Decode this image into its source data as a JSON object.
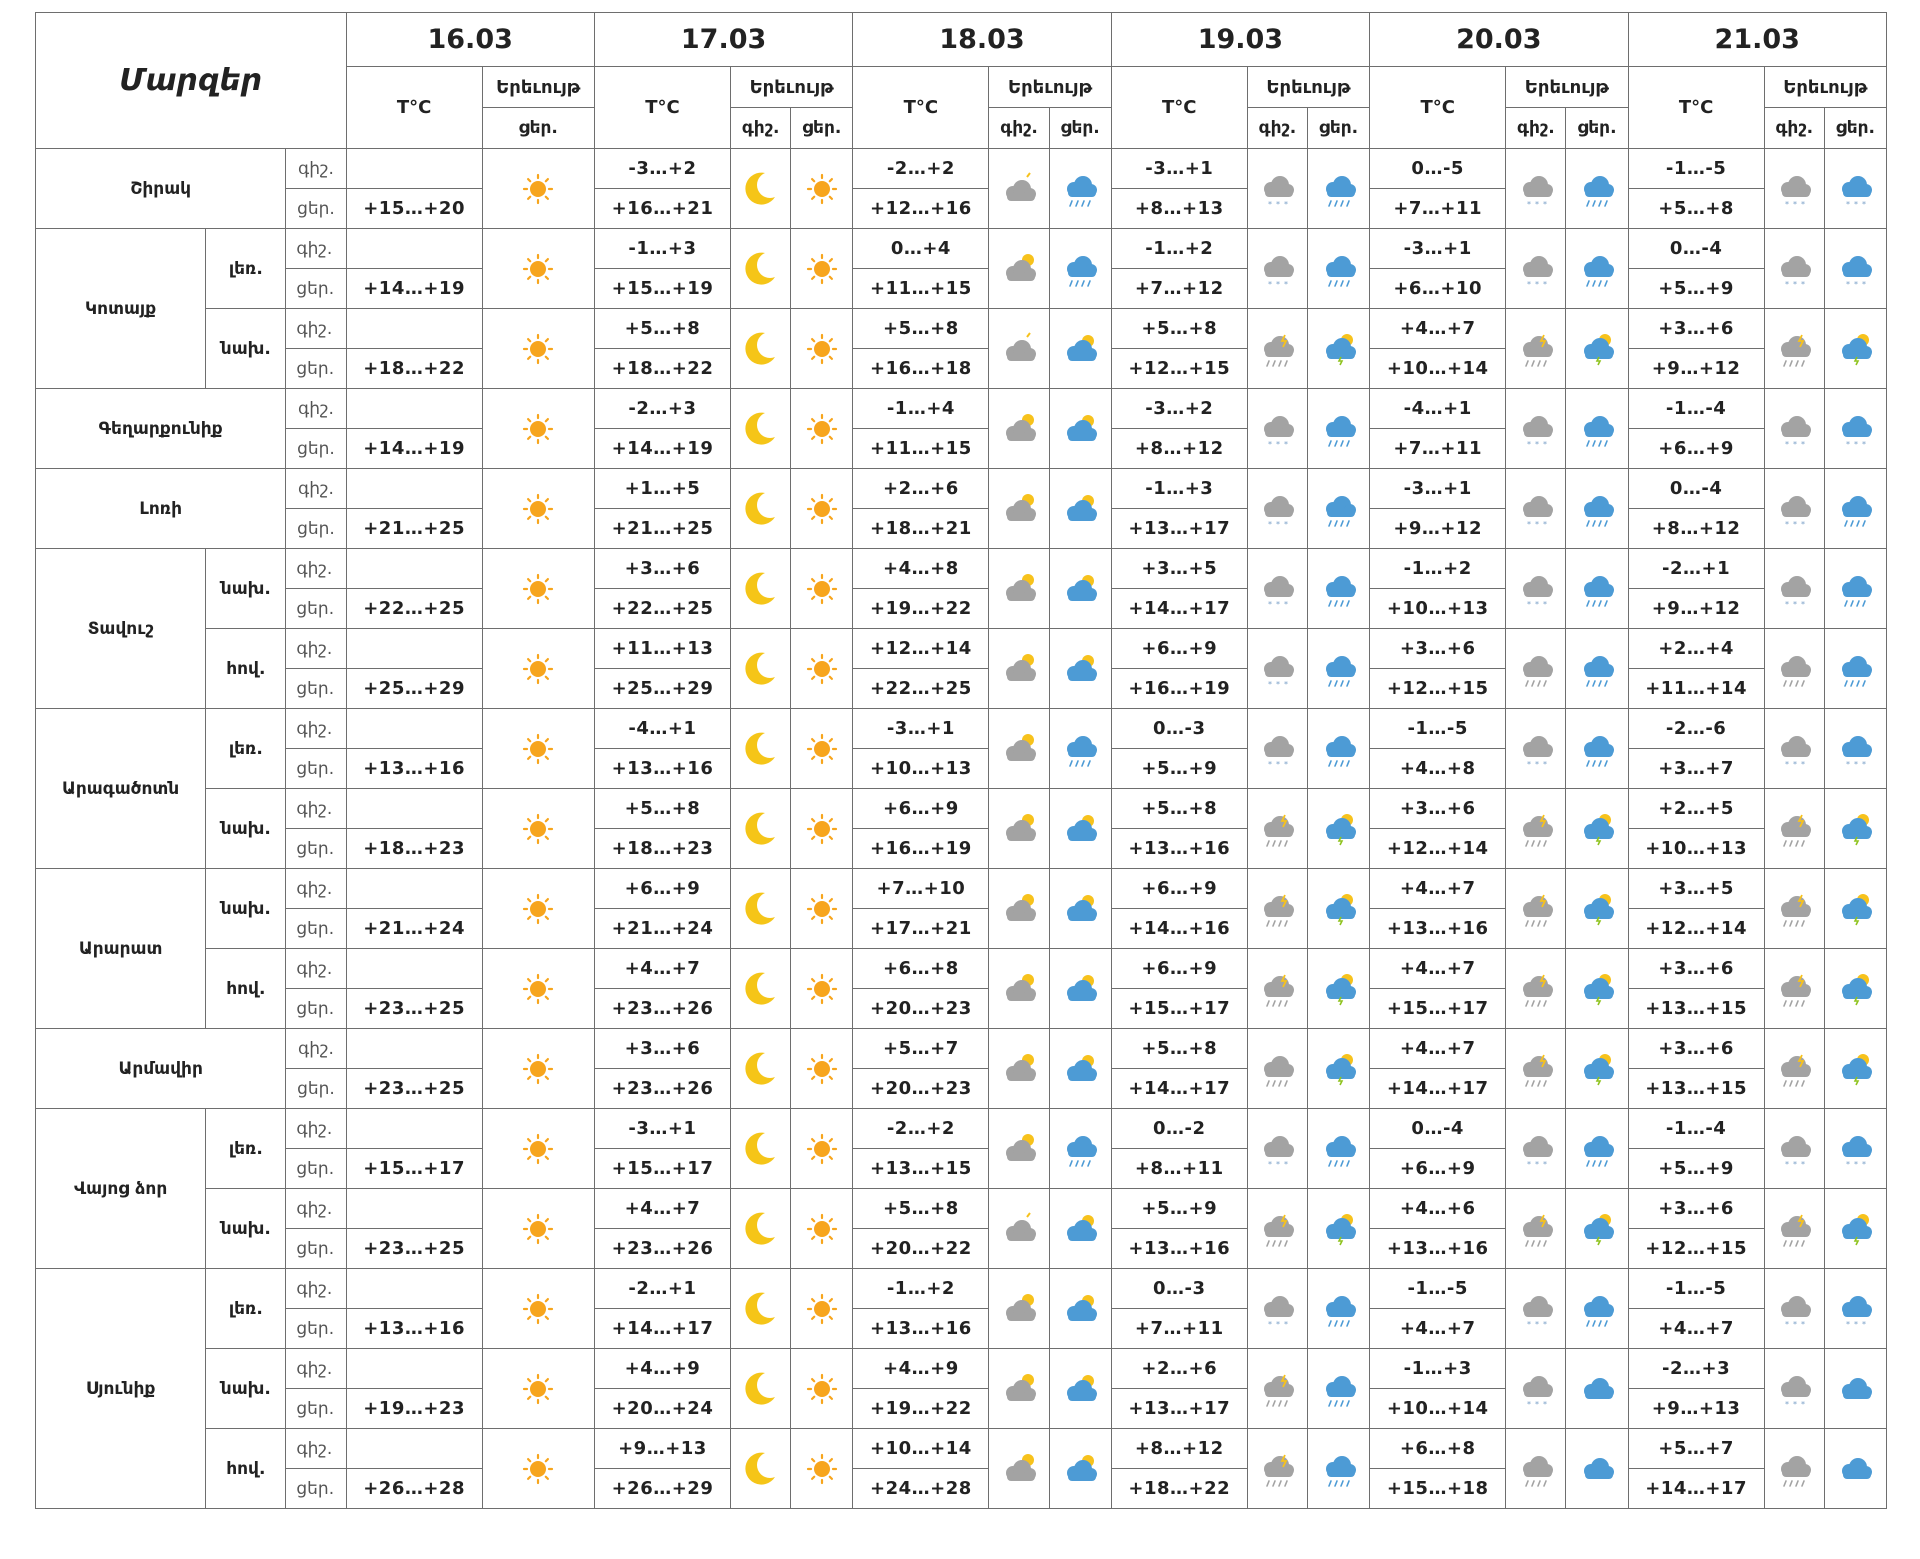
{
  "header": {
    "title": "Մարզեր",
    "dates": [
      "16.03",
      "17.03",
      "18.03",
      "19.03",
      "20.03",
      "21.03"
    ],
    "temp_label": "T°C",
    "phenomenon_label": "Երեւույթ",
    "night_label": "գիշ.",
    "day_label": "ցեր."
  },
  "regions": [
    {
      "name": "Շիրակ",
      "subs": [
        {
          "label": "",
          "night": [
            "",
            "-3…+2",
            "-2…+2",
            "-3…+1",
            "0…-5",
            "-1…-5"
          ],
          "day": [
            "+15…+20",
            "+16…+21",
            "+12…+16",
            "+8…+13",
            "+7…+11",
            "+5…+8"
          ],
          "icons": [
            "sun",
            "moon",
            "sun",
            "cloud",
            "shower",
            "snowcloud",
            "shower",
            "snowcloud",
            "shower",
            "snowcloud",
            "snowshower"
          ]
        }
      ]
    },
    {
      "name": "Կոտայք",
      "subs": [
        {
          "label": "լեռ.",
          "night": [
            "",
            "-1…+3",
            "0…+4",
            "-1…+2",
            "-3…+1",
            "0…-4"
          ],
          "day": [
            "+14…+19",
            "+15…+19",
            "+11…+15",
            "+7…+12",
            "+6…+10",
            "+5…+9"
          ],
          "icons": [
            "sun",
            "moon",
            "sun",
            "cloudsun",
            "shower",
            "snowcloud",
            "shower",
            "snowcloud",
            "shower",
            "snowcloud",
            "snowshower"
          ]
        },
        {
          "label": "նախ.",
          "night": [
            "",
            "+5…+8",
            "+5…+8",
            "+5…+8",
            "+4…+7",
            "+3…+6"
          ],
          "day": [
            "+18…+22",
            "+18…+22",
            "+16…+18",
            "+12…+15",
            "+10…+14",
            "+9…+12"
          ],
          "icons": [
            "sun",
            "moon",
            "sun",
            "cloud",
            "suncloud",
            "storm",
            "sunstorm",
            "storm",
            "sunstorm",
            "storm",
            "sunstorm"
          ]
        }
      ]
    },
    {
      "name": "Գեղարքունիք",
      "subs": [
        {
          "label": "",
          "night": [
            "",
            "-2…+3",
            "-1…+4",
            "-3…+2",
            "-4…+1",
            "-1…-4"
          ],
          "day": [
            "+14…+19",
            "+14…+19",
            "+11…+15",
            "+8…+12",
            "+7…+11",
            "+6…+9"
          ],
          "icons": [
            "sun",
            "moon",
            "sun",
            "cloudsun",
            "suncloud",
            "snowcloud",
            "shower",
            "snowcloud",
            "shower",
            "snowcloud",
            "snowshower"
          ]
        }
      ]
    },
    {
      "name": "Լոռի",
      "subs": [
        {
          "label": "",
          "night": [
            "",
            "+1…+5",
            "+2…+6",
            "-1…+3",
            "-3…+1",
            "0…-4"
          ],
          "day": [
            "+21…+25",
            "+21…+25",
            "+18…+21",
            "+13…+17",
            "+9…+12",
            "+8…+12"
          ],
          "icons": [
            "sun",
            "moon",
            "sun",
            "cloudsun",
            "suncloud",
            "snowcloud",
            "shower",
            "snowcloud",
            "shower",
            "snowcloud",
            "shower"
          ]
        }
      ]
    },
    {
      "name": "Տավուշ",
      "subs": [
        {
          "label": "նախ.",
          "night": [
            "",
            "+3…+6",
            "+4…+8",
            "+3…+5",
            "-1…+2",
            "-2…+1"
          ],
          "day": [
            "+22…+25",
            "+22…+25",
            "+19…+22",
            "+14…+17",
            "+10…+13",
            "+9…+12"
          ],
          "icons": [
            "sun",
            "moon",
            "sun",
            "cloudsun",
            "suncloud",
            "snowcloud",
            "shower",
            "snowcloud",
            "shower",
            "snowcloud",
            "shower"
          ]
        },
        {
          "label": "հով.",
          "night": [
            "",
            "+11…+13",
            "+12…+14",
            "+6…+9",
            "+3…+6",
            "+2…+4"
          ],
          "day": [
            "+25…+29",
            "+25…+29",
            "+22…+25",
            "+16…+19",
            "+12…+15",
            "+11…+14"
          ],
          "icons": [
            "sun",
            "moon",
            "sun",
            "cloudsun",
            "suncloud",
            "snowcloud",
            "shower",
            "raincloud",
            "shower",
            "raincloud",
            "shower"
          ]
        }
      ]
    },
    {
      "name": "Արագածոտն",
      "subs": [
        {
          "label": "լեռ.",
          "night": [
            "",
            "-4…+1",
            "-3…+1",
            "0…-3",
            "-1…-5",
            "-2…-6"
          ],
          "day": [
            "+13…+16",
            "+13…+16",
            "+10…+13",
            "+5…+9",
            "+4…+8",
            "+3…+7"
          ],
          "icons": [
            "sun",
            "moon",
            "sun",
            "cloudsun",
            "shower",
            "snowcloud",
            "shower",
            "snowcloud",
            "shower",
            "snowcloud",
            "snowshower"
          ]
        },
        {
          "label": "նախ.",
          "night": [
            "",
            "+5…+8",
            "+6…+9",
            "+5…+8",
            "+3…+6",
            "+2…+5"
          ],
          "day": [
            "+18…+23",
            "+18…+23",
            "+16…+19",
            "+13…+16",
            "+12…+14",
            "+10…+13"
          ],
          "icons": [
            "sun",
            "moon",
            "sun",
            "cloudsun",
            "suncloud",
            "storm",
            "sunstorm",
            "storm",
            "sunstorm",
            "storm",
            "sunstorm"
          ]
        }
      ]
    },
    {
      "name": "Արարատ",
      "subs": [
        {
          "label": "նախ.",
          "night": [
            "",
            "+6…+9",
            "+7…+10",
            "+6…+9",
            "+4…+7",
            "+3…+5"
          ],
          "day": [
            "+21…+24",
            "+21…+24",
            "+17…+21",
            "+14…+16",
            "+13…+16",
            "+12…+14"
          ],
          "icons": [
            "sun",
            "moon",
            "sun",
            "cloudsun",
            "suncloud",
            "storm",
            "sunstorm",
            "storm",
            "sunstorm",
            "storm",
            "sunstorm"
          ]
        },
        {
          "label": "հով.",
          "night": [
            "",
            "+4…+7",
            "+6…+8",
            "+6…+9",
            "+4…+7",
            "+3…+6"
          ],
          "day": [
            "+23…+25",
            "+23…+26",
            "+20…+23",
            "+15…+17",
            "+15…+17",
            "+13…+15"
          ],
          "icons": [
            "sun",
            "moon",
            "sun",
            "cloudsun",
            "suncloud",
            "storm",
            "sunstorm",
            "storm",
            "sunstorm",
            "storm",
            "sunstorm"
          ]
        }
      ]
    },
    {
      "name": "Արմավիր",
      "subs": [
        {
          "label": "",
          "night": [
            "",
            "+3…+6",
            "+5…+7",
            "+5…+8",
            "+4…+7",
            "+3…+6"
          ],
          "day": [
            "+23…+25",
            "+23…+26",
            "+20…+23",
            "+14…+17",
            "+14…+17",
            "+13…+15"
          ],
          "icons": [
            "sun",
            "moon",
            "sun",
            "cloudsun",
            "suncloud",
            "raincloud",
            "sunstorm",
            "storm",
            "sunstorm",
            "storm",
            "sunstorm"
          ]
        }
      ]
    },
    {
      "name": "Վայոց ձոր",
      "subs": [
        {
          "label": "լեռ.",
          "night": [
            "",
            "-3…+1",
            "-2…+2",
            "0…-2",
            "0…-4",
            "-1…-4"
          ],
          "day": [
            "+15…+17",
            "+15…+17",
            "+13…+15",
            "+8…+11",
            "+6…+9",
            "+5…+9"
          ],
          "icons": [
            "sun",
            "moon",
            "sun",
            "cloudsun",
            "shower",
            "snowcloud",
            "shower",
            "snowcloud",
            "shower",
            "snowcloud",
            "snowshower"
          ]
        },
        {
          "label": "նախ.",
          "night": [
            "",
            "+4…+7",
            "+5…+8",
            "+5…+9",
            "+4…+6",
            "+3…+6"
          ],
          "day": [
            "+23…+25",
            "+23…+26",
            "+20…+22",
            "+13…+16",
            "+13…+16",
            "+12…+15"
          ],
          "icons": [
            "sun",
            "moon",
            "sun",
            "cloud",
            "suncloud",
            "storm",
            "sunstorm",
            "storm",
            "sunstorm",
            "storm",
            "sunstorm"
          ]
        }
      ]
    },
    {
      "name": "Սյունիք",
      "subs": [
        {
          "label": "լեռ.",
          "night": [
            "",
            "-2…+1",
            "-1…+2",
            "0…-3",
            "-1…-5",
            "-1…-5"
          ],
          "day": [
            "+13…+16",
            "+14…+17",
            "+13…+16",
            "+7…+11",
            "+4…+7",
            "+4…+7"
          ],
          "icons": [
            "sun",
            "moon",
            "sun",
            "cloudsun",
            "suncloud",
            "snowcloud",
            "shower",
            "snowcloud",
            "shower",
            "snowcloud",
            "snowshower"
          ]
        },
        {
          "label": "նախ.",
          "night": [
            "",
            "+4…+9",
            "+4…+9",
            "+2…+6",
            "-1…+3",
            "-2…+3"
          ],
          "day": [
            "+19…+23",
            "+20…+24",
            "+19…+22",
            "+13…+17",
            "+10…+14",
            "+9…+13"
          ],
          "icons": [
            "sun",
            "moon",
            "sun",
            "cloudsun",
            "suncloud",
            "storm",
            "shower",
            "snowcloud",
            "cloudonly",
            "snowcloud",
            "cloudonly"
          ]
        },
        {
          "label": "հով.",
          "night": [
            "",
            "+9…+13",
            "+10…+14",
            "+8…+12",
            "+6…+8",
            "+5…+7"
          ],
          "day": [
            "+26…+28",
            "+26…+29",
            "+24…+28",
            "+18…+22",
            "+15…+18",
            "+14…+17"
          ],
          "icons": [
            "sun",
            "moon",
            "sun",
            "cloudsun",
            "suncloud",
            "storm",
            "shower",
            "raincloud",
            "cloudonly",
            "raincloud",
            "cloudonly"
          ]
        }
      ]
    }
  ],
  "colors": {
    "border": "#6e6e6e",
    "sun": "#f5a623",
    "moon": "#f4c20d",
    "gray_cloud": "#9e9e9e",
    "blue_cloud": "#4a90c8"
  }
}
